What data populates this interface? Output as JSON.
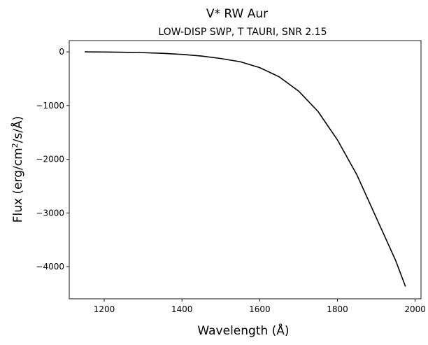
{
  "chart_data": {
    "type": "line",
    "title": "V* RW Aur",
    "subtitle": "LOW-DISP SWP, T TAURI, SNR 2.15",
    "xlabel": "Wavelength (Å)",
    "ylabel_prefix": "Flux (erg/cm",
    "ylabel_sup": "2",
    "ylabel_suffix": "/s/Å)",
    "xlim": [
      1110,
      2015
    ],
    "ylim": [
      -4600,
      210
    ],
    "xticks": [
      1200,
      1400,
      1600,
      1800,
      2000
    ],
    "yticks": [
      0,
      -1000,
      -2000,
      -3000,
      -4000
    ],
    "xtick_labels": [
      "1200",
      "1400",
      "1600",
      "1800",
      "2000"
    ],
    "ytick_labels": [
      "0",
      "−1000",
      "−2000",
      "−3000",
      "−4000"
    ],
    "grid": false,
    "series": [
      {
        "color": "#000000",
        "x": [
          1150,
          1200,
          1250,
          1300,
          1350,
          1400,
          1450,
          1500,
          1550,
          1600,
          1650,
          1700,
          1750,
          1800,
          1850,
          1900,
          1950,
          1975
        ],
        "y": [
          0,
          -3,
          -8,
          -15,
          -27,
          -47,
          -78,
          -124,
          -184,
          -293,
          -465,
          -730,
          -1110,
          -1640,
          -2290,
          -3090,
          -3890,
          -4370
        ]
      }
    ]
  }
}
